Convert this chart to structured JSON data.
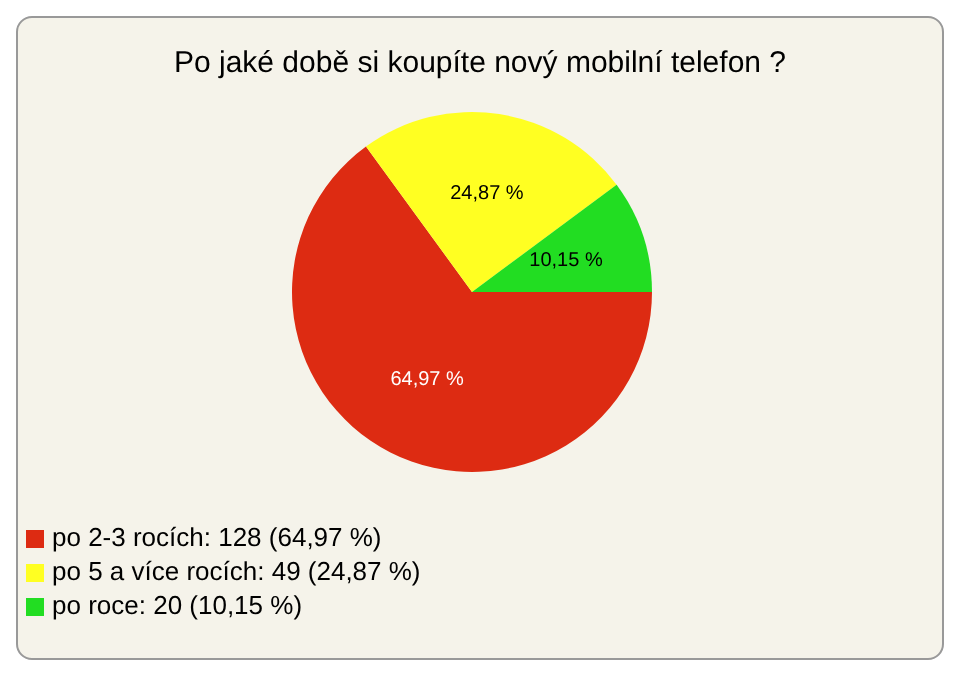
{
  "chart_data": {
    "type": "pie",
    "title": "Po jaké době si koupíte nový mobilní telefon ?",
    "categories": [
      "po 2-3 rocích: 128 (64,97 %)",
      "po 5 a více rocích: 49 (24,87 %)",
      "po roce: 20 (10,15 %)"
    ],
    "values": [
      64.97,
      24.87,
      10.15
    ],
    "colors": [
      "#dd2b12",
      "#ffff22",
      "#22dd22"
    ],
    "value_labels": [
      "64,97 %",
      "24,87 %",
      "10,15 %"
    ],
    "legend": "bottom left"
  }
}
